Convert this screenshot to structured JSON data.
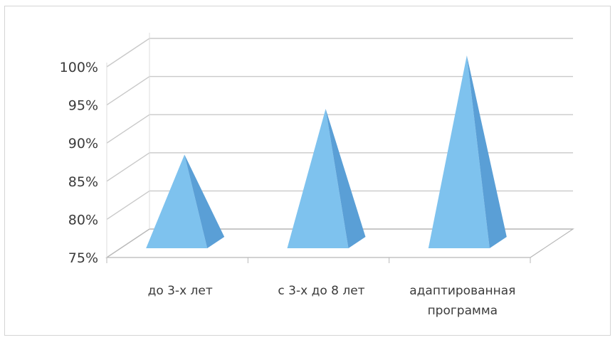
{
  "chart_data": {
    "type": "bar",
    "style": "3d-pyramid",
    "title": "",
    "xlabel": "",
    "ylabel": "",
    "categories": [
      [
        "до 3-х лет"
      ],
      [
        "с 3-х до 8 лет"
      ],
      [
        "адаптированная",
        "программа"
      ]
    ],
    "series": [
      {
        "values": [
          87,
          93,
          100
        ]
      }
    ],
    "ylim": [
      75,
      100
    ],
    "yticks": [
      "75%",
      "80%",
      "85%",
      "90%",
      "95%",
      "100%"
    ],
    "ytick_values": [
      75,
      80,
      85,
      90,
      95,
      100
    ],
    "grid": true,
    "legend": "none",
    "colors": {
      "pyramid_front": "#7ec2ee",
      "pyramid_side": "#5a9fd6",
      "gridline": "#c9c9c9",
      "text": "#3b3b3b"
    }
  }
}
